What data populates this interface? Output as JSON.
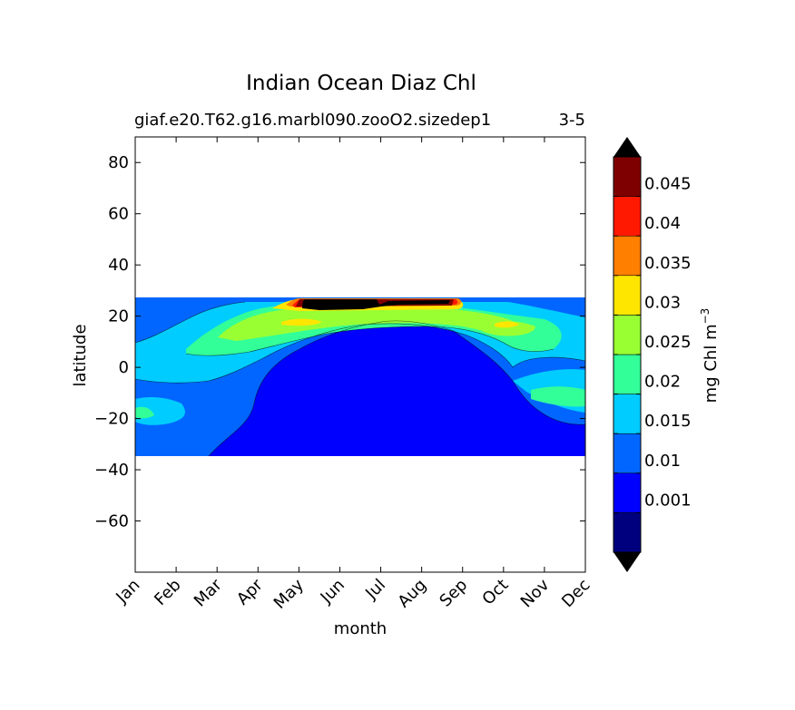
{
  "chart_data": {
    "type": "heatmap",
    "title": "Indian Ocean Diaz Chl",
    "subtitle_left": "giaf.e20.T62.g16.marbl090.zooO2.sizedep1",
    "subtitle_right": "3-5",
    "xlabel": "month",
    "ylabel": "latitude",
    "x_ticks": [
      "Jan",
      "Feb",
      "Mar",
      "Apr",
      "May",
      "Jun",
      "Jul",
      "Aug",
      "Sep",
      "Oct",
      "Nov",
      "Dec"
    ],
    "xlim": [
      0,
      11
    ],
    "ylim": [
      -80,
      90
    ],
    "y_ticks": [
      80,
      60,
      40,
      20,
      0,
      -20,
      -40,
      -60
    ],
    "y_tick_labels": [
      "80",
      "60",
      "40",
      "20",
      "0",
      "−20",
      "−40",
      "−60"
    ],
    "data_extent_lat": [
      -34,
      27.5
    ],
    "colorbar": {
      "label_base": "mg Chl m",
      "label_exp": "−3",
      "extend": "both",
      "tick_labels": [
        "0.001",
        "0.01",
        "0.015",
        "0.02",
        "0.025",
        "0.03",
        "0.035",
        "0.04",
        "0.045"
      ],
      "band_colors": [
        "#00007f",
        "#0000ff",
        "#0066ff",
        "#00ccff",
        "#33ff99",
        "#99ff33",
        "#ffe600",
        "#ff7f00",
        "#ff1900",
        "#7f0000"
      ],
      "under_color": "#000000",
      "over_color": "#000000"
    }
  }
}
